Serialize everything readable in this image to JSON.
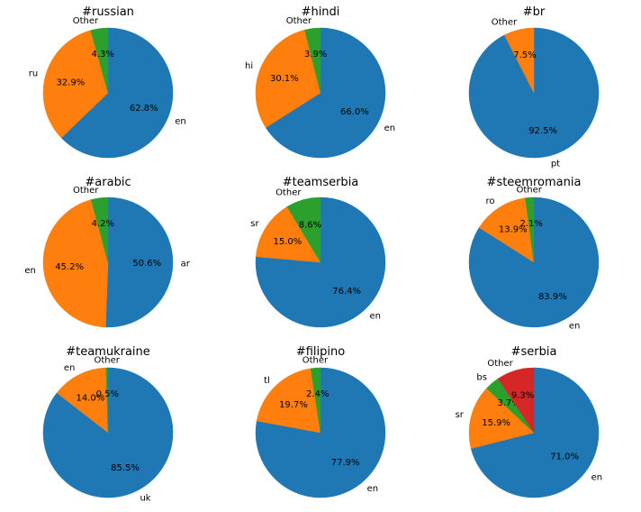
{
  "colors": {
    "c0": "#1f77b4",
    "c1": "#ff7f0e",
    "c2": "#2ca02c",
    "c3": "#d62728"
  },
  "chart_data": [
    {
      "type": "pie",
      "title": "#russian",
      "slices": [
        {
          "label": "en",
          "value": 62.8,
          "pct": "62.8%"
        },
        {
          "label": "ru",
          "value": 32.9,
          "pct": "32.9%"
        },
        {
          "label": "Other",
          "value": 4.3,
          "pct": "4.3%"
        }
      ]
    },
    {
      "type": "pie",
      "title": "#hindi",
      "slices": [
        {
          "label": "en",
          "value": 66.0,
          "pct": "66.0%"
        },
        {
          "label": "hi",
          "value": 30.1,
          "pct": "30.1%"
        },
        {
          "label": "Other",
          "value": 3.9,
          "pct": "3.9%"
        }
      ]
    },
    {
      "type": "pie",
      "title": "#br",
      "slices": [
        {
          "label": "pt",
          "value": 92.5,
          "pct": "92.5%"
        },
        {
          "label": "Other",
          "value": 7.5,
          "pct": "7.5%"
        }
      ]
    },
    {
      "type": "pie",
      "title": "#arabic",
      "slices": [
        {
          "label": "ar",
          "value": 50.6,
          "pct": "50.6%"
        },
        {
          "label": "en",
          "value": 45.2,
          "pct": "45.2%"
        },
        {
          "label": "Other",
          "value": 4.2,
          "pct": "4.2%"
        }
      ]
    },
    {
      "type": "pie",
      "title": "#teamserbia",
      "slices": [
        {
          "label": "en",
          "value": 76.4,
          "pct": "76.4%"
        },
        {
          "label": "sr",
          "value": 15.0,
          "pct": "15.0%"
        },
        {
          "label": "Other",
          "value": 8.6,
          "pct": "8.6%"
        }
      ]
    },
    {
      "type": "pie",
      "title": "#steemromania",
      "slices": [
        {
          "label": "en",
          "value": 83.9,
          "pct": "83.9%"
        },
        {
          "label": "ro",
          "value": 13.9,
          "pct": "13.9%"
        },
        {
          "label": "Other",
          "value": 2.1,
          "pct": "2.1%"
        }
      ]
    },
    {
      "type": "pie",
      "title": "#teamukraine",
      "slices": [
        {
          "label": "uk",
          "value": 85.5,
          "pct": "85.5%"
        },
        {
          "label": "en",
          "value": 14.0,
          "pct": "14.0%"
        },
        {
          "label": "Other",
          "value": 0.5,
          "pct": "0.5%"
        }
      ]
    },
    {
      "type": "pie",
      "title": "#filipino",
      "slices": [
        {
          "label": "en",
          "value": 77.9,
          "pct": "77.9%"
        },
        {
          "label": "tl",
          "value": 19.7,
          "pct": "19.7%"
        },
        {
          "label": "Other",
          "value": 2.4,
          "pct": "2.4%"
        }
      ]
    },
    {
      "type": "pie",
      "title": "#serbia",
      "slices": [
        {
          "label": "en",
          "value": 71.0,
          "pct": "71.0%"
        },
        {
          "label": "sr",
          "value": 15.9,
          "pct": "15.9%"
        },
        {
          "label": "bs",
          "value": 3.7,
          "pct": "3.7%"
        },
        {
          "label": "Other",
          "value": 9.3,
          "pct": "9.3%"
        }
      ]
    }
  ]
}
